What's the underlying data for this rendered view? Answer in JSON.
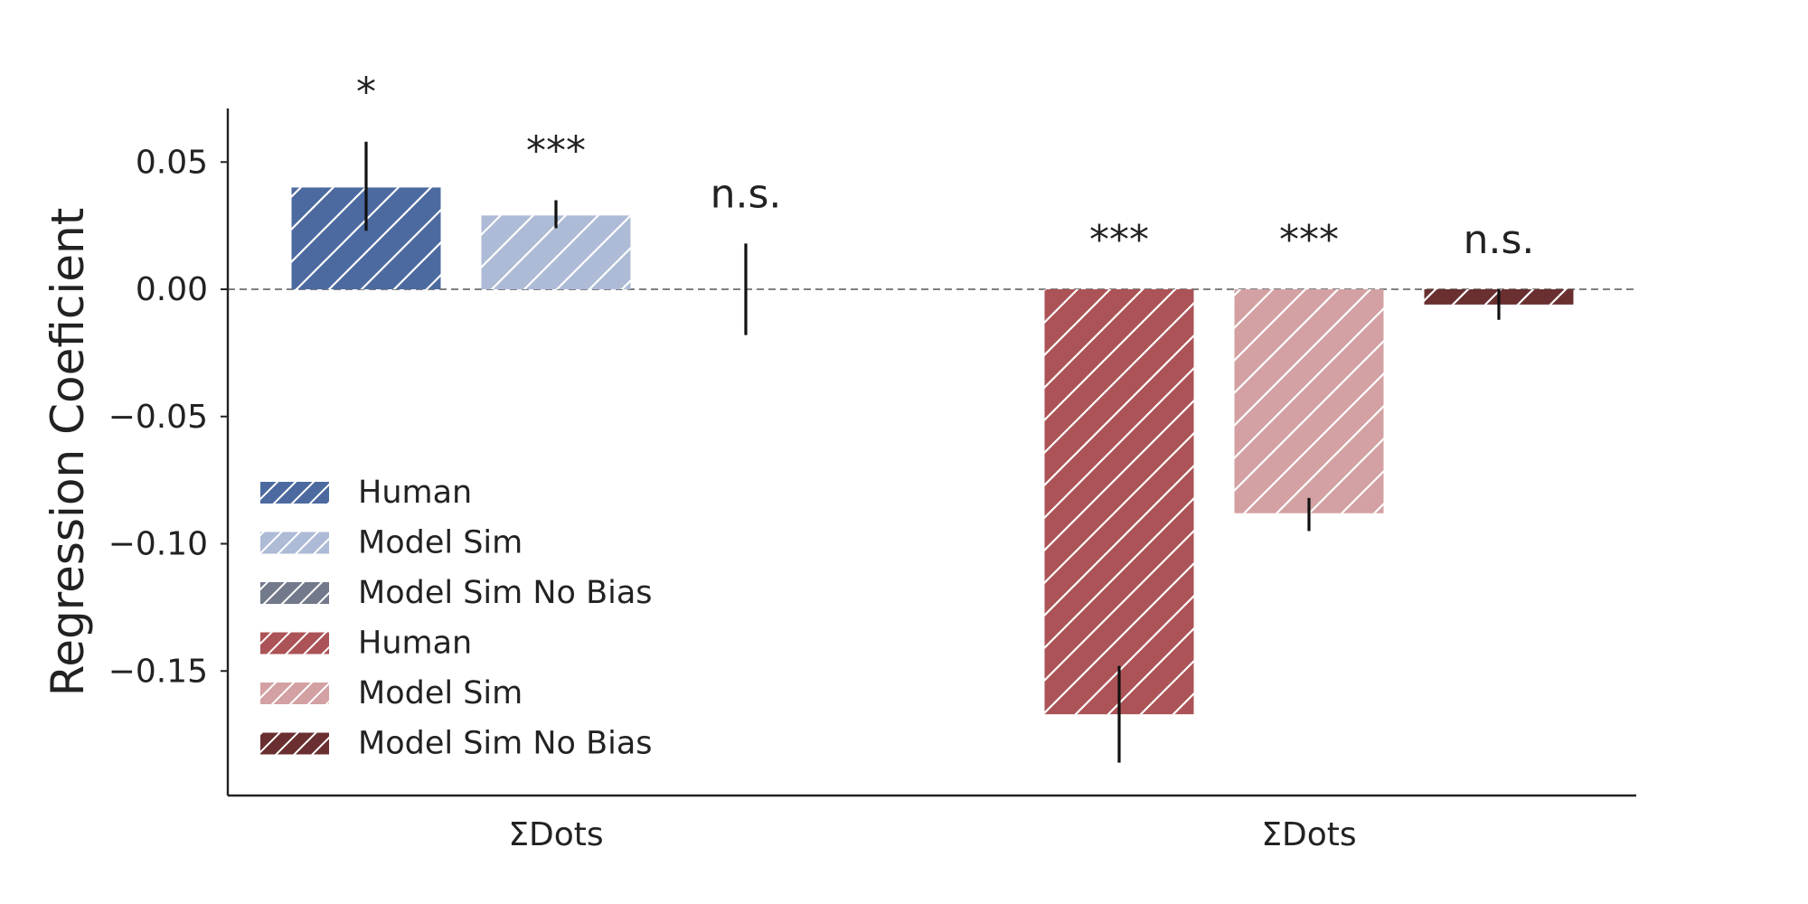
{
  "chart_data": {
    "type": "bar",
    "title": "",
    "ylabel": "Regression Coeficient",
    "xlabel": "",
    "ylim": [
      -0.198,
      0.07
    ],
    "yticks": [
      0.05,
      0.0,
      -0.05,
      -0.1,
      -0.15
    ],
    "ytick_labels": [
      "0.05",
      "0.00",
      "−0.05",
      "−0.10",
      "−0.15"
    ],
    "zero_line": "dashed",
    "grid": false,
    "legend_position": "lower-left",
    "groups": [
      {
        "label": "ΣDots",
        "bars": [
          {
            "series": "Human",
            "value": 0.04,
            "err_low": 0.023,
            "err_high": 0.058,
            "sig": "*",
            "color": "#4c6aa0"
          },
          {
            "series": "Model Sim",
            "value": 0.029,
            "err_low": 0.024,
            "err_high": 0.035,
            "sig": "***",
            "color": "#adbbd6"
          },
          {
            "series": "Model Sim No Bias",
            "value": 0.0,
            "err_low": -0.018,
            "err_high": 0.018,
            "sig": "n.s.",
            "color": "#72798a"
          }
        ]
      },
      {
        "label": "ΣDots",
        "bars": [
          {
            "series": "Human",
            "value": -0.167,
            "err_low": -0.186,
            "err_high": -0.148,
            "sig": "***",
            "color": "#ab5356"
          },
          {
            "series": "Model Sim",
            "value": -0.088,
            "err_low": -0.095,
            "err_high": -0.082,
            "sig": "***",
            "color": "#d3a1a3"
          },
          {
            "series": "Model Sim No Bias",
            "value": -0.006,
            "err_low": -0.012,
            "err_high": 0.0,
            "sig": "n.s.",
            "color": "#6a2f30"
          }
        ]
      }
    ],
    "legend": [
      {
        "label": "Human",
        "color": "#4c6aa0"
      },
      {
        "label": "Model Sim",
        "color": "#adbbd6"
      },
      {
        "label": "Model Sim No Bias",
        "color": "#72798a"
      },
      {
        "label": "Human",
        "color": "#ab5356"
      },
      {
        "label": "Model Sim",
        "color": "#d3a1a3"
      },
      {
        "label": "Model Sim No Bias",
        "color": "#6a2f30"
      }
    ]
  }
}
